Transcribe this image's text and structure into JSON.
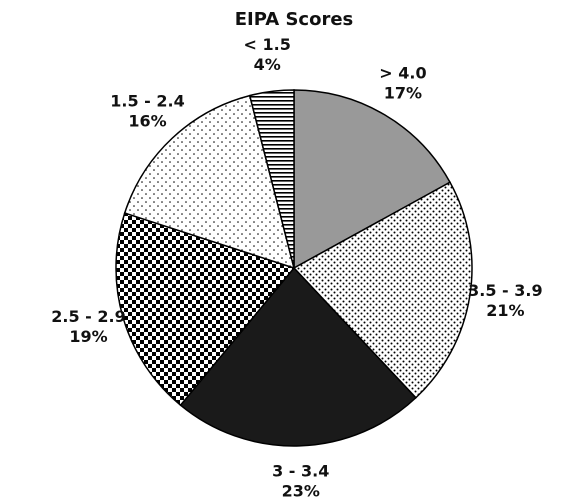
{
  "chart_data": {
    "type": "pie",
    "title": "EIPA Scores",
    "categories": [
      "> 4.0",
      "3.5 - 3.9",
      "3 - 3.4",
      "2.5 - 2.9",
      "1.5 - 2.4",
      "< 1.5"
    ],
    "values": [
      17,
      21,
      23,
      19,
      16,
      4
    ],
    "value_labels": [
      "17%",
      "21%",
      "23%",
      "19%",
      "16%",
      "4%"
    ],
    "colors": [
      "#999999",
      "#ffffff",
      "#1a1a1a",
      "#000000",
      "#ffffff",
      "#ffffff"
    ],
    "patterns": [
      "solid",
      "dots",
      "solid",
      "checker",
      "sparse-dots",
      "hlines"
    ]
  }
}
